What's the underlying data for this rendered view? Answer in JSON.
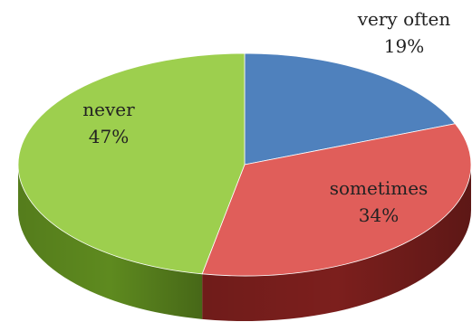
{
  "chart_data": {
    "type": "pie",
    "style": "3d",
    "labels": [
      "very often",
      "sometimes",
      "never"
    ],
    "values": [
      19,
      34,
      47
    ],
    "value_labels": [
      "19%",
      "34%",
      "47%"
    ],
    "colors": [
      "#4f81bd",
      "#e05e5a",
      "#9dcf4e"
    ],
    "side_colors": [
      "#2f5182",
      "#7c1f1d",
      "#5e8a1f"
    ],
    "legend": "none"
  }
}
